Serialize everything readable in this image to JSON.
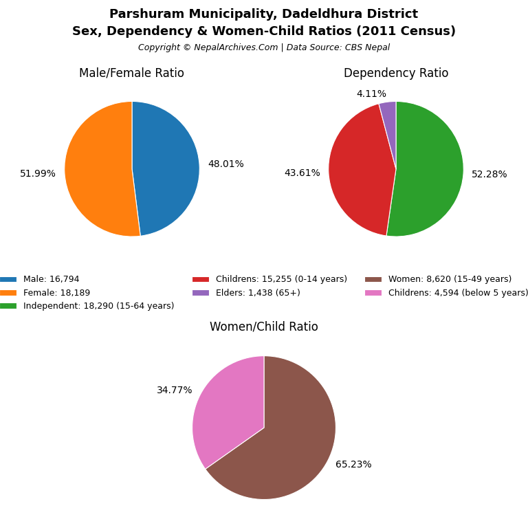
{
  "title": "Parshuram Municipality, Dadeldhura District",
  "subtitle": "Sex, Dependency & Women-Child Ratios (2011 Census)",
  "annotations": [
    "Copyright © NepalArchives.Com | Data Source: CBS Nepal"
  ],
  "chart_data": [
    {
      "type": "pie",
      "title": "Male/Female Ratio",
      "categories": [
        "Male: 16,794",
        "Female: 18,189"
      ],
      "values": [
        48.01,
        51.99
      ],
      "value_labels": [
        "48.01%",
        "51.99%"
      ],
      "data_labels": true,
      "legend": "center"
    },
    {
      "type": "pie",
      "title": "Dependency Ratio",
      "categories": [
        "Independent: 18,290 (15-64 years)",
        "Childrens: 15,255 (0-14 years)",
        "Elders: 1,438 (65+)"
      ],
      "values": [
        52.28,
        43.61,
        4.11
      ],
      "value_labels": [
        "52.28%",
        "43.61%",
        "4.11%"
      ],
      "data_labels": true,
      "legend": "center"
    },
    {
      "type": "pie",
      "title": "Women/Child Ratio",
      "categories": [
        "Women: 8,620 (15-49 years)",
        "Childrens: 4,594 (below 5 years)"
      ],
      "values": [
        65.23,
        34.77
      ],
      "value_labels": [
        "65.23%",
        "34.77%"
      ],
      "data_labels": true,
      "legend": "center"
    }
  ]
}
